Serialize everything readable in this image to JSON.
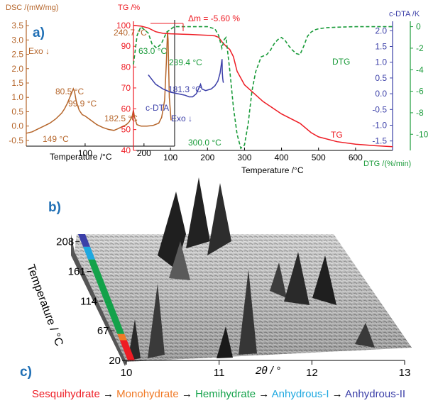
{
  "colors": {
    "dsc": "#b5652a",
    "tg": "#ee1c24",
    "dtg": "#1a9b3a",
    "cdta": "#3b3fa8",
    "panel_label": "#1f6fb5",
    "sesqui": "#ee1c24",
    "mono": "#f07a27",
    "hemi": "#13a24a",
    "anh1": "#1ea8e0",
    "anh2": "#3b3fa8"
  },
  "panel_labels": {
    "a": "a)",
    "b": "b)",
    "c": "c)"
  },
  "chart_data": [
    {
      "type": "line",
      "panel": "a-left",
      "ylabel": "DSC /(mW/mg)",
      "xlabel": "Temperature /°C",
      "xlim": [
        0,
        240
      ],
      "ylim": [
        -0.7,
        3.7
      ],
      "yticks": [
        "3.5",
        "3.0",
        "2.5",
        "2.0",
        "1.5",
        "1.0",
        "0.5",
        "0.0",
        "-0.5"
      ],
      "ytick_values": [
        3.5,
        3.0,
        2.5,
        2.0,
        1.5,
        1.0,
        0.5,
        0.0,
        -0.5
      ],
      "xticks": [
        "100",
        "200"
      ],
      "xtick_values": [
        100,
        200
      ],
      "annotations": [
        "240.7 °C",
        "Exo ↓",
        "80.5 °C",
        "99.9 °C",
        "182.5 °C",
        "149 °C"
      ],
      "series": [
        {
          "values_x": [
            0,
            10,
            20,
            30,
            40,
            50,
            60,
            65,
            70,
            75,
            78,
            80,
            82,
            85,
            90,
            95,
            100,
            110,
            120,
            130,
            140,
            149,
            155,
            160,
            165,
            170,
            175,
            180,
            182,
            184,
            188,
            195,
            205,
            215,
            225,
            230,
            235,
            238,
            240,
            241,
            243,
            246
          ],
          "values_y": [
            -0.25,
            -0.2,
            -0.1,
            0.0,
            0.1,
            0.25,
            0.45,
            0.6,
            0.8,
            1.05,
            1.2,
            1.3,
            1.2,
            0.85,
            0.55,
            0.4,
            0.35,
            0.2,
            0.05,
            -0.05,
            -0.12,
            -0.15,
            -0.1,
            -0.05,
            0.0,
            0.05,
            0.15,
            0.35,
            0.55,
            0.3,
            0.05,
            0.0,
            0.0,
            0.02,
            0.1,
            0.3,
            0.9,
            2.2,
            3.3,
            3.0,
            1.0,
            0.2
          ]
        }
      ]
    },
    {
      "type": "line",
      "panel": "a-right",
      "xlabel": "Temperature /°C",
      "ylabel_left": "TG /%",
      "ylabel_right_inner": "c-DTA /K",
      "ylabel_right_outer": "DTG /(%/min)",
      "xlim": [
        0,
        700
      ],
      "ylim_tg": [
        40,
        102
      ],
      "ylim_cdta": [
        -1.8,
        2.3
      ],
      "ylim_dtg": [
        -11.5,
        0.5
      ],
      "xticks": [
        "100",
        "200",
        "300",
        "400",
        "500",
        "600"
      ],
      "xtick_values": [
        100,
        200,
        300,
        400,
        500,
        600
      ],
      "tg_ticks": [
        "100",
        "90",
        "80",
        "70",
        "60",
        "50",
        "40"
      ],
      "tg_tick_values": [
        100,
        90,
        80,
        70,
        60,
        50,
        40
      ],
      "cdta_ticks": [
        "2.0",
        "1.5",
        "1.0",
        "0.5",
        "0.0",
        "-0.5",
        "-1.0",
        "-1.5"
      ],
      "cdta_tick_values": [
        2.0,
        1.5,
        1.0,
        0.5,
        0.0,
        -0.5,
        -1.0,
        -1.5
      ],
      "dtg_ticks": [
        "0",
        "-2",
        "-4",
        "-6",
        "-8",
        "-10"
      ],
      "dtg_tick_values": [
        0,
        -2,
        -4,
        -6,
        -8,
        -10
      ],
      "annotations": [
        "Δm = -5.60 %",
        "63.0 °C",
        "239.4 °C",
        "181.3 °C",
        "c-DTA",
        "Exo ↓",
        "300.0 °C",
        "DTG",
        "TG"
      ],
      "series": [
        {
          "name": "TG",
          "x": [
            0,
            20,
            40,
            60,
            80,
            100,
            150,
            200,
            220,
            230,
            240,
            250,
            260,
            270,
            280,
            300,
            350,
            400,
            450,
            480,
            500,
            550,
            600,
            650,
            700
          ],
          "y": [
            100,
            99.7,
            98.8,
            97.0,
            96.2,
            96.0,
            95.7,
            95.3,
            95.0,
            94.3,
            92.0,
            90.0,
            88.5,
            85.0,
            78.0,
            71.5,
            63.5,
            57.5,
            53.0,
            48.5,
            46.5,
            44.2,
            43.0,
            42.3,
            41.8
          ]
        },
        {
          "name": "DTG",
          "x": [
            0,
            10,
            20,
            40,
            50,
            63,
            75,
            90,
            110,
            150,
            200,
            220,
            230,
            239,
            245,
            250,
            260,
            270,
            280,
            290,
            300,
            310,
            320,
            330,
            345,
            360,
            370,
            380,
            390,
            400,
            410,
            420,
            430,
            440,
            450,
            460,
            470,
            480,
            490,
            500,
            520,
            550,
            600,
            650,
            700
          ],
          "y": [
            -3.5,
            -0.8,
            0.0,
            -0.6,
            -1.6,
            -2.0,
            -1.6,
            -0.5,
            0.0,
            0.0,
            0.0,
            -0.2,
            -0.8,
            -2.0,
            -1.2,
            -1.0,
            -4.0,
            -7.5,
            -10.0,
            -11.3,
            -11.0,
            -9.0,
            -6.0,
            -4.2,
            -2.8,
            -2.6,
            -2.2,
            -1.6,
            -1.2,
            -1.0,
            -1.3,
            -1.8,
            -2.2,
            -2.5,
            -2.6,
            -1.8,
            -0.9,
            -0.5,
            -0.3,
            -0.2,
            -0.1,
            -0.05,
            0.0,
            0.0,
            0.0
          ]
        },
        {
          "name": "c-DTA",
          "x": [
            40,
            60,
            80,
            100,
            120,
            140,
            150,
            160,
            170,
            181.3,
            185,
            195,
            210,
            220,
            228,
            234,
            239.4,
            240,
            241,
            242,
            243
          ],
          "y": [
            0.6,
            0.3,
            0.15,
            0.05,
            0.0,
            -0.05,
            -0.1,
            -0.1,
            0.0,
            0.3,
            0.15,
            0.1,
            0.15,
            0.25,
            0.4,
            0.65,
            1.1,
            0.7,
            0.5,
            0.4,
            0.35
          ]
        }
      ]
    },
    {
      "type": "surface",
      "panel": "b",
      "xlabel": "2θ / °",
      "ylabel": "Temperature / °C",
      "xticks": [
        "10",
        "11",
        "12",
        "13"
      ],
      "xtick_values": [
        10,
        11,
        12,
        13
      ],
      "yticks": [
        "208",
        "161",
        "114",
        "67",
        "20"
      ],
      "ytick_values": [
        208,
        161,
        114,
        67,
        20
      ],
      "phase_bands": [
        {
          "name": "Sesquihydrate",
          "from": 20,
          "to": 52
        },
        {
          "name": "Monohydrate",
          "from": 52,
          "to": 62
        },
        {
          "name": "Hemihydrate",
          "from": 62,
          "to": 180
        },
        {
          "name": "Anhydrous-I",
          "from": 180,
          "to": 200
        },
        {
          "name": "Anhydrous-II",
          "from": 200,
          "to": 220
        }
      ]
    }
  ],
  "legend_sequence": [
    {
      "label": "Sesquihydrate",
      "color": "#ee1c24"
    },
    {
      "label": "Monohydrate",
      "color": "#f07a27"
    },
    {
      "label": "Hemihydrate",
      "color": "#13a24a"
    },
    {
      "label": "Anhydrous-I",
      "color": "#1ea8e0"
    },
    {
      "label": "Anhydrous-II",
      "color": "#3b3fa8"
    }
  ],
  "legend_arrow": "→"
}
